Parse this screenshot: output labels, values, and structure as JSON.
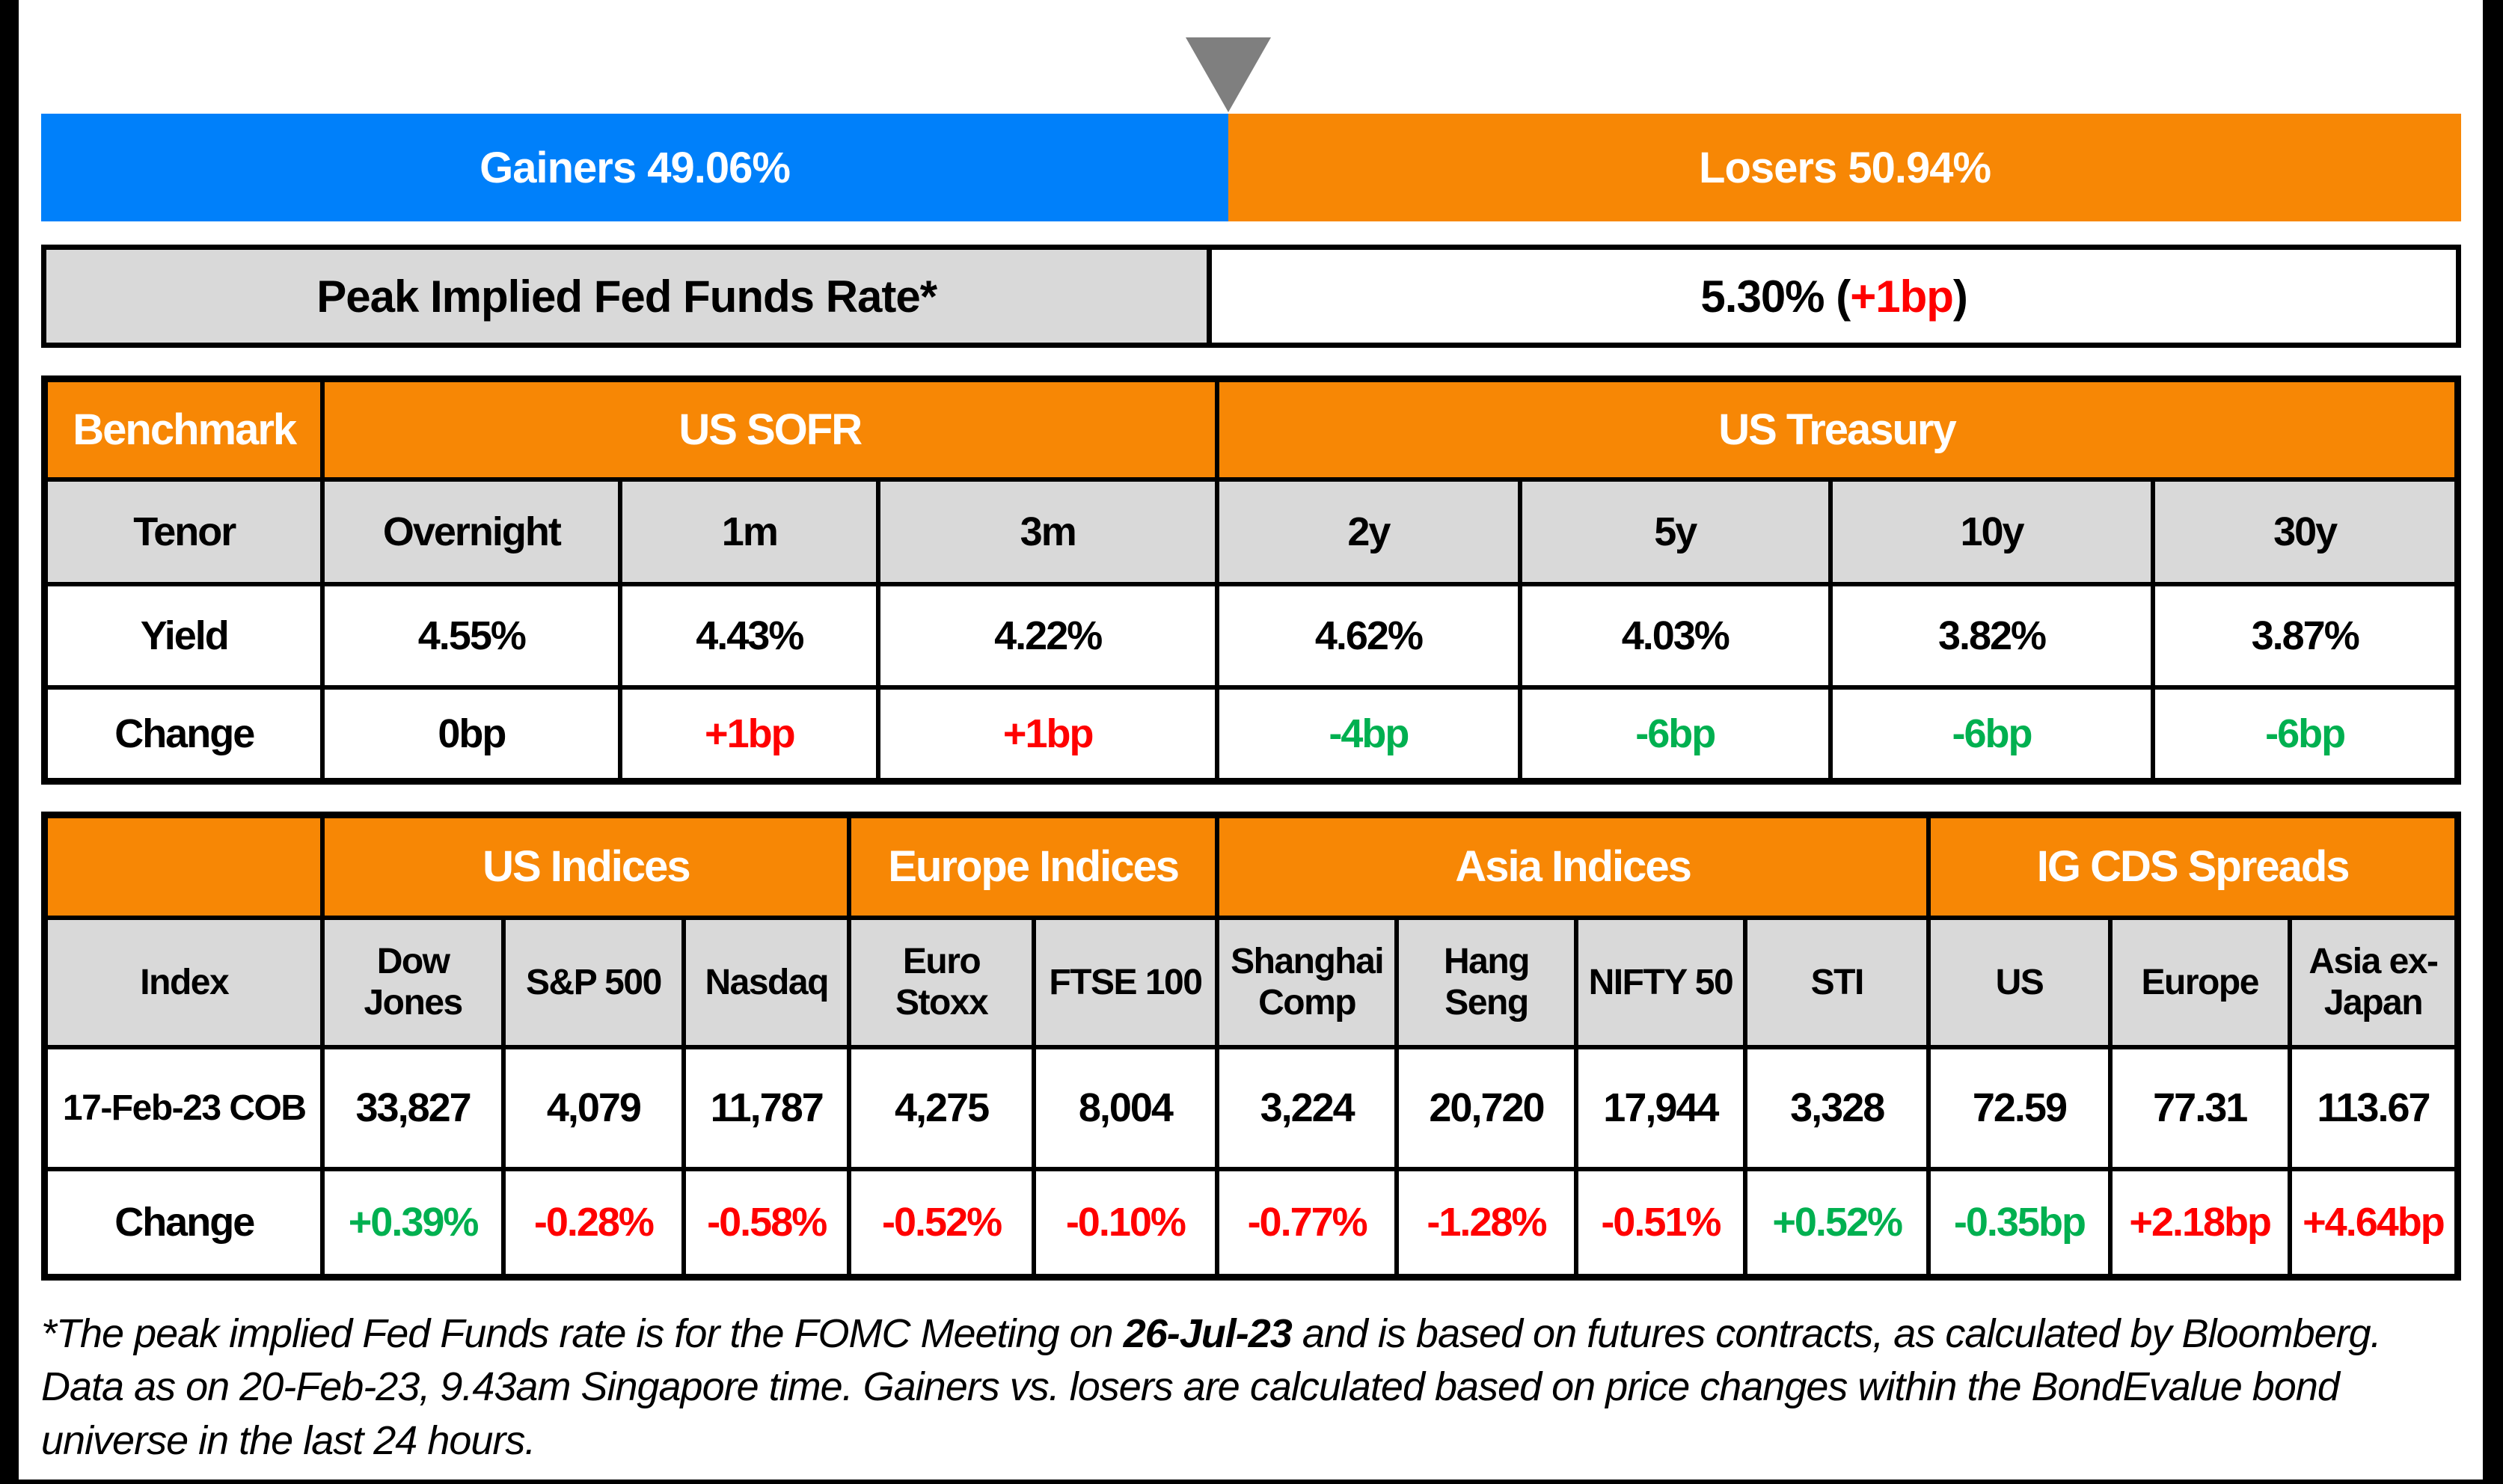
{
  "colors": {
    "blue": "#0080FA",
    "orange": "#F78705",
    "red": "#FF0000",
    "green": "#00B050",
    "gray_cell": "#D9D9D9",
    "gray_triangle": "#7F7F7F"
  },
  "gainers_losers": {
    "gainers_label": "Gainers 49.06%",
    "losers_label": "Losers 50.94%",
    "gainers_pct": 49.06,
    "losers_pct": 50.94
  },
  "fed_funds": {
    "label": "Peak Implied Fed Funds Rate*",
    "value_prefix": "5.30% (",
    "change": "+1bp",
    "value_suffix": ")"
  },
  "benchmark_table": {
    "header": {
      "benchmark": "Benchmark",
      "us_sofr": "US SOFR",
      "us_treasury": "US Treasury"
    },
    "row_labels": {
      "tenor": "Tenor",
      "yield": "Yield",
      "change": "Change"
    },
    "columns": [
      {
        "tenor": "Overnight",
        "yield": "4.55%",
        "change": "0bp",
        "change_color": "black"
      },
      {
        "tenor": "1m",
        "yield": "4.43%",
        "change": "+1bp",
        "change_color": "red"
      },
      {
        "tenor": "3m",
        "yield": "4.22%",
        "change": "+1bp",
        "change_color": "red"
      },
      {
        "tenor": "2y",
        "yield": "4.62%",
        "change": "-4bp",
        "change_color": "green"
      },
      {
        "tenor": "5y",
        "yield": "4.03%",
        "change": "-6bp",
        "change_color": "green"
      },
      {
        "tenor": "10y",
        "yield": "3.82%",
        "change": "-6bp",
        "change_color": "green"
      },
      {
        "tenor": "30y",
        "yield": "3.87%",
        "change": "-6bp",
        "change_color": "green"
      }
    ]
  },
  "indices_table": {
    "groups": [
      {
        "label": "US Indices"
      },
      {
        "label": "Europe Indices"
      },
      {
        "label": "Asia Indices"
      },
      {
        "label": "IG CDS Spreads"
      }
    ],
    "row_labels": {
      "index": "Index",
      "date": "17-Feb-23 COB",
      "change": "Change"
    },
    "columns": [
      {
        "name": "Dow Jones",
        "value": "33,827",
        "change": "+0.39%",
        "change_color": "green"
      },
      {
        "name": "S&P 500",
        "value": "4,079",
        "change": "-0.28%",
        "change_color": "red"
      },
      {
        "name": "Nasdaq",
        "value": "11,787",
        "change": "-0.58%",
        "change_color": "red"
      },
      {
        "name": "Euro Stoxx",
        "value": "4,275",
        "change": "-0.52%",
        "change_color": "red"
      },
      {
        "name": "FTSE 100",
        "value": "8,004",
        "change": "-0.10%",
        "change_color": "red"
      },
      {
        "name": "Shanghai Comp",
        "value": "3,224",
        "change": "-0.77%",
        "change_color": "red"
      },
      {
        "name": "Hang Seng",
        "value": "20,720",
        "change": "-1.28%",
        "change_color": "red"
      },
      {
        "name": "NIFTY 50",
        "value": "17,944",
        "change": "-0.51%",
        "change_color": "red"
      },
      {
        "name": "STI",
        "value": "3,328",
        "change": "+0.52%",
        "change_color": "green"
      },
      {
        "name": "US",
        "value": "72.59",
        "change": "-0.35bp",
        "change_color": "green"
      },
      {
        "name": "Europe",
        "value": "77.31",
        "change": "+2.18bp",
        "change_color": "red"
      },
      {
        "name": "Asia ex-Japan",
        "value": "113.67",
        "change": "+4.64bp",
        "change_color": "red"
      }
    ]
  },
  "footnote": {
    "part1": "*The peak implied Fed Funds rate is for the FOMC Meeting on ",
    "bold_date": "26-Jul-23",
    "part2": " and is based on futures contracts, as calculated by Bloomberg. Data as on 20-Feb-23, 9.43am Singapore time. Gainers vs. losers are calculated based on price changes within the BondEvalue bond universe in the last 24 hours."
  },
  "chart_data": [
    {
      "type": "bar",
      "title": "Gainers vs Losers (% of BondEvalue bond universe, last 24 hours)",
      "categories": [
        "Gainers",
        "Losers"
      ],
      "values": [
        49.06,
        50.94
      ],
      "colors": [
        "#0080FA",
        "#F78705"
      ],
      "orientation": "horizontal-stacked",
      "marker": "gray triangle pointing at 49.06% split"
    },
    {
      "type": "table",
      "title": "Benchmark — US SOFR & US Treasury",
      "columns": [
        "Tenor",
        "Overnight",
        "1m",
        "3m",
        "2y",
        "5y",
        "10y",
        "30y"
      ],
      "rows": [
        [
          "Yield",
          "4.55%",
          "4.43%",
          "4.22%",
          "4.62%",
          "4.03%",
          "3.82%",
          "3.87%"
        ],
        [
          "Change",
          "0bp",
          "+1bp",
          "+1bp",
          "-4bp",
          "-6bp",
          "-6bp",
          "-6bp"
        ]
      ]
    },
    {
      "type": "table",
      "title": "US / Europe / Asia Indices & IG CDS Spreads",
      "columns": [
        "Index",
        "Dow Jones",
        "S&P 500",
        "Nasdaq",
        "Euro Stoxx",
        "FTSE 100",
        "Shanghai Comp",
        "Hang Seng",
        "NIFTY 50",
        "STI",
        "US",
        "Europe",
        "Asia ex-Japan"
      ],
      "rows": [
        [
          "17-Feb-23 COB",
          "33,827",
          "4,079",
          "11,787",
          "4,275",
          "8,004",
          "3,224",
          "20,720",
          "17,944",
          "3,328",
          "72.59",
          "77.31",
          "113.67"
        ],
        [
          "Change",
          "+0.39%",
          "-0.28%",
          "-0.58%",
          "-0.52%",
          "-0.10%",
          "-0.77%",
          "-1.28%",
          "-0.51%",
          "+0.52%",
          "-0.35bp",
          "+2.18bp",
          "+4.64bp"
        ]
      ]
    }
  ]
}
